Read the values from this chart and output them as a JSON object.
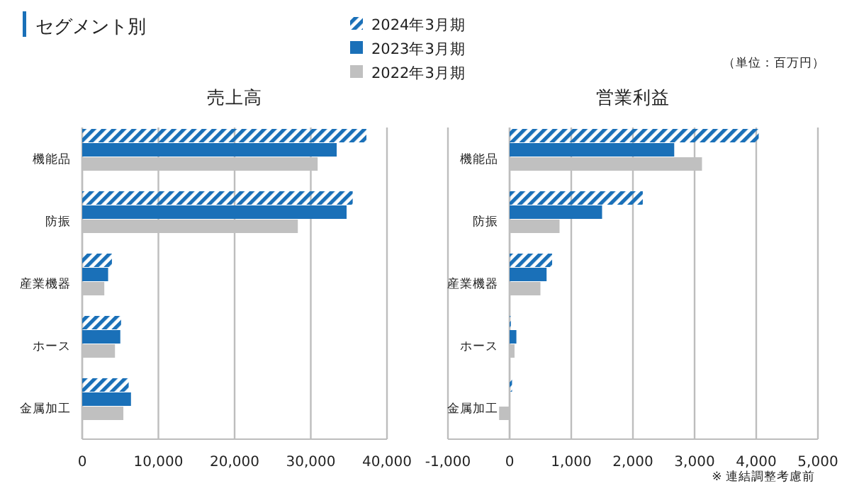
{
  "chart_data": [
    {
      "type": "bar",
      "orientation": "horizontal",
      "title": "売上高",
      "annotations": [
        "セグメント別"
      ],
      "legend": "top",
      "grid": "x",
      "categories": [
        "機能品",
        "防振",
        "産業機器",
        "ホース",
        "金属加工"
      ],
      "xlim": [
        0,
        40000
      ],
      "xticks": [
        {
          "value": 0,
          "label": "0"
        },
        {
          "value": 10000,
          "label": "10,000"
        },
        {
          "value": 20000,
          "label": "20,000"
        },
        {
          "value": 30000,
          "label": "30,000"
        },
        {
          "value": 40000,
          "label": "40,000"
        }
      ],
      "series": [
        {
          "name": "2024年3月期",
          "color": "#1a70b8",
          "values": [
            37300,
            35500,
            3900,
            5100,
            6100
          ]
        },
        {
          "name": "2023年3月期",
          "color": "#1a70b8",
          "values": [
            33400,
            34700,
            3400,
            5000,
            6400
          ]
        },
        {
          "name": "2022年3月期",
          "color": "#c0c0c0",
          "values": [
            30900,
            28300,
            2900,
            4300,
            5400
          ]
        }
      ]
    },
    {
      "type": "bar",
      "orientation": "horizontal",
      "title": "営業利益",
      "annotations": [
        "（単位：百万円）",
        "※ 連結調整考慮前"
      ],
      "grid": "x",
      "categories": [
        "機能品",
        "防振",
        "産業機器",
        "ホース",
        "金属加工"
      ],
      "xlim": [
        -1000,
        5000
      ],
      "xticks": [
        {
          "value": -1000,
          "label": "-1,000"
        },
        {
          "value": 0,
          "label": "0"
        },
        {
          "value": 1000,
          "label": "1,000"
        },
        {
          "value": 2000,
          "label": "2,000"
        },
        {
          "value": 3000,
          "label": "3,000"
        },
        {
          "value": 4000,
          "label": "4,000"
        },
        {
          "value": 5000,
          "label": "5,000"
        }
      ],
      "series": [
        {
          "color": "#1a70b8",
          "values": [
            4040,
            2160,
            690,
            20,
            40
          ]
        },
        {
          "color": "#1a70b8",
          "values": [
            2670,
            1500,
            600,
            110,
            0
          ]
        },
        {
          "color": "#c0c0c0",
          "values": [
            3120,
            810,
            500,
            80,
            -170
          ]
        }
      ]
    }
  ]
}
